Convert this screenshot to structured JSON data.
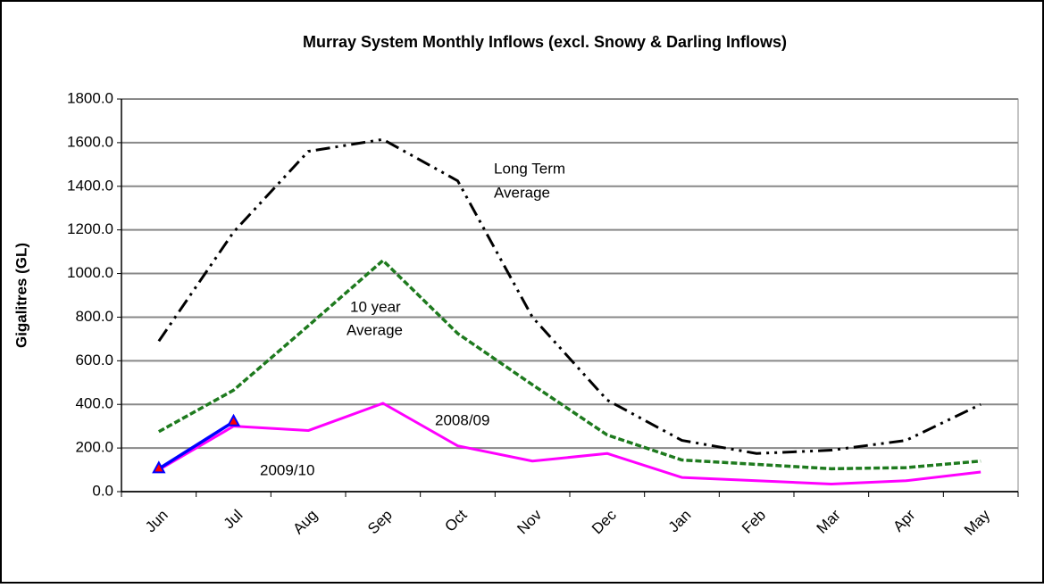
{
  "chart_data": {
    "type": "line",
    "title": "Murray System Monthly Inflows (excl. Snowy & Darling Inflows)",
    "y_label": "Gigalitres (GL)",
    "categories": [
      "Jun",
      "Jul",
      "Aug",
      "Sep",
      "Oct",
      "Nov",
      "Dec",
      "Jan",
      "Feb",
      "Mar",
      "Apr",
      "May"
    ],
    "ylim": [
      0,
      1800
    ],
    "yticks": [
      {
        "value": 0,
        "label": "0.0"
      },
      {
        "value": 200,
        "label": "200.0"
      },
      {
        "value": 400,
        "label": "400.0"
      },
      {
        "value": 600,
        "label": "600.0"
      },
      {
        "value": 800,
        "label": "800.0"
      },
      {
        "value": 1000,
        "label": "1000.0"
      },
      {
        "value": 1200,
        "label": "1200.0"
      },
      {
        "value": 1400,
        "label": "1400.0"
      },
      {
        "value": 1600,
        "label": "1600.0"
      },
      {
        "value": 1800,
        "label": "1800.0"
      }
    ],
    "grid": true,
    "series": [
      {
        "label": [
          "Long Term",
          "Average"
        ],
        "color": "#000000",
        "values": [
          690,
          1190,
          1560,
          1615,
          1425,
          800,
          420,
          235,
          175,
          190,
          235,
          400
        ]
      },
      {
        "label": [
          "10 year",
          "Average"
        ],
        "color": "#1e7a1e",
        "values": [
          275,
          465,
          760,
          1060,
          725,
          490,
          260,
          145,
          125,
          105,
          110,
          140
        ]
      },
      {
        "label": [
          "2008/09"
        ],
        "color": "#ff00ff",
        "values": [
          100,
          300,
          280,
          405,
          210,
          140,
          175,
          65,
          50,
          35,
          50,
          90
        ]
      },
      {
        "label": [
          "2009/10"
        ],
        "color": "#0000ff",
        "marker_color": "#ff0000",
        "values": [
          105,
          320,
          null,
          null,
          null,
          null,
          null,
          null,
          null,
          null,
          null,
          null
        ]
      }
    ]
  }
}
